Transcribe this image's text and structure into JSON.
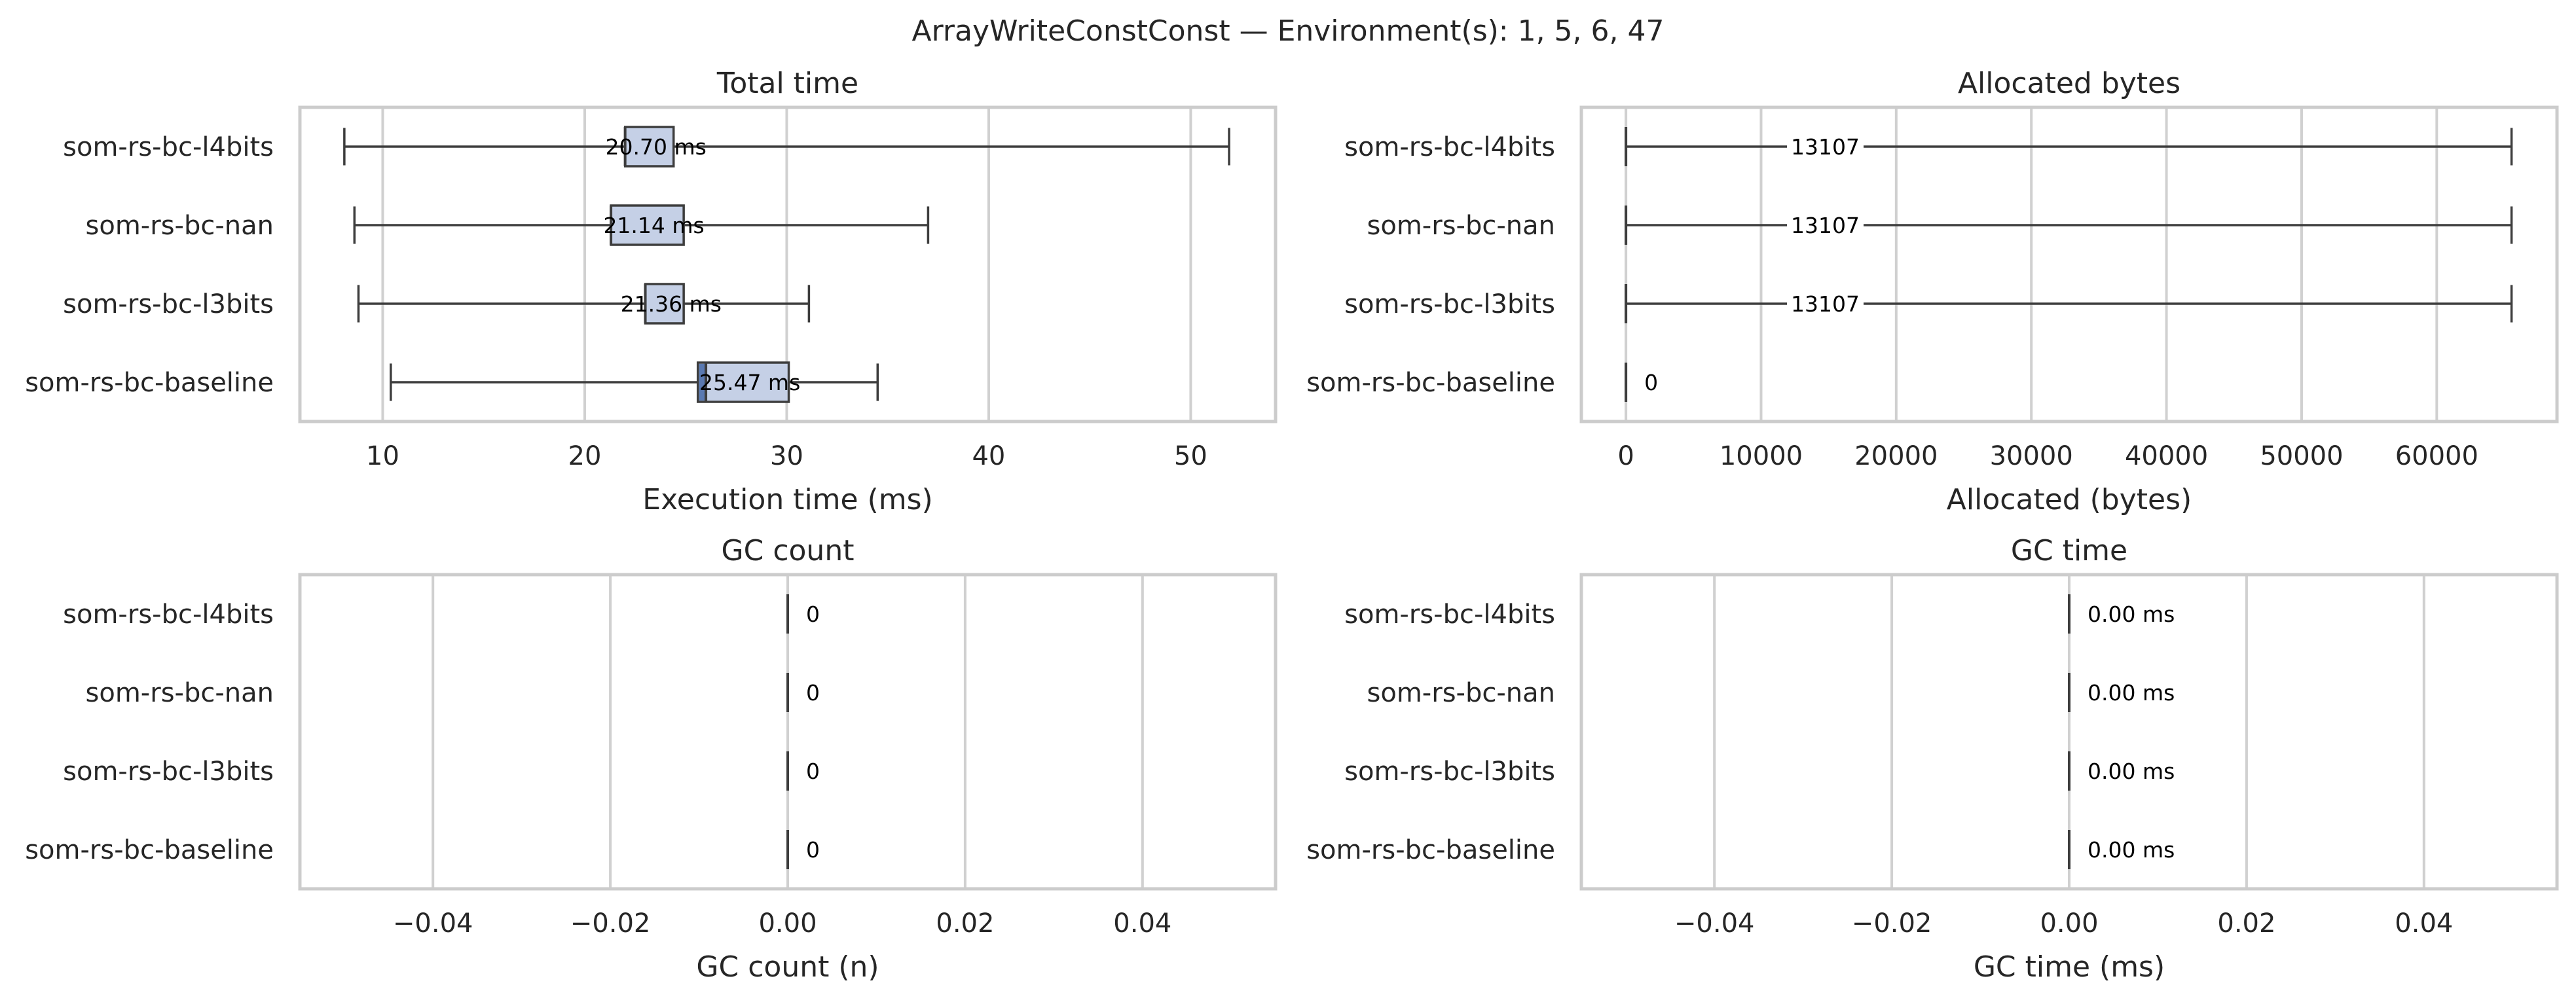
{
  "title": "ArrayWriteConstConst — Environment(s): 1, 5, 6, 47",
  "box_color": "#c5d0e6",
  "box_lower_color": "#5a79b1",
  "chart_data": [
    {
      "type": "box",
      "title": "Total time",
      "xlabel": "Execution time (ms)",
      "ylabel": "",
      "xlim": [
        5.9,
        54.2
      ],
      "xticks": [
        10,
        20,
        30,
        40,
        50
      ],
      "xtick_labels": [
        "10",
        "20",
        "30",
        "40",
        "50"
      ],
      "grid": true,
      "categories": [
        "som-rs-bc-l4bits",
        "som-rs-bc-nan",
        "som-rs-bc-l3bits",
        "som-rs-bc-baseline"
      ],
      "boxes": [
        {
          "min": 8.1,
          "q1": 22.0,
          "median": 22.0,
          "q3": 24.4,
          "max": 51.9
        },
        {
          "min": 8.6,
          "q1": 21.3,
          "median": 21.3,
          "q3": 24.9,
          "max": 37.0
        },
        {
          "min": 8.8,
          "q1": 23.0,
          "median": 23.0,
          "q3": 24.9,
          "max": 31.1
        },
        {
          "min": 10.4,
          "q1": 25.6,
          "median": 26.0,
          "q3": 30.1,
          "max": 34.5
        }
      ],
      "labels": [
        "20.70 ms",
        "21.14 ms",
        "21.36 ms",
        "25.47 ms"
      ]
    },
    {
      "type": "box",
      "title": "Allocated bytes",
      "xlabel": "Allocated (bytes)",
      "ylabel": "",
      "xlim": [
        -3300,
        68900
      ],
      "xticks": [
        0,
        10000,
        20000,
        30000,
        40000,
        50000,
        60000
      ],
      "xtick_labels": [
        "0",
        "10000",
        "20000",
        "30000",
        "40000",
        "50000",
        "60000"
      ],
      "grid": true,
      "categories": [
        "som-rs-bc-l4bits",
        "som-rs-bc-nan",
        "som-rs-bc-l3bits",
        "som-rs-bc-baseline"
      ],
      "boxes": [
        {
          "min": 0,
          "q1": 0,
          "median": 0,
          "q3": 0,
          "max": 65536
        },
        {
          "min": 0,
          "q1": 0,
          "median": 0,
          "q3": 0,
          "max": 65536
        },
        {
          "min": 0,
          "q1": 0,
          "median": 0,
          "q3": 0,
          "max": 65536
        },
        {
          "min": 0,
          "q1": 0,
          "median": 0,
          "q3": 0,
          "max": 0
        }
      ],
      "labels": [
        "13107",
        "13107",
        "13107",
        "0"
      ]
    },
    {
      "type": "box",
      "title": "GC count",
      "xlabel": "GC count (n)",
      "ylabel": "",
      "xlim": [
        -0.055,
        0.055
      ],
      "xticks": [
        -0.04,
        -0.02,
        0,
        0.02,
        0.04
      ],
      "xtick_labels": [
        "−0.04",
        "−0.02",
        "0.00",
        "0.02",
        "0.04"
      ],
      "grid": true,
      "categories": [
        "som-rs-bc-l4bits",
        "som-rs-bc-nan",
        "som-rs-bc-l3bits",
        "som-rs-bc-baseline"
      ],
      "boxes": [
        {
          "min": 0,
          "q1": 0,
          "median": 0,
          "q3": 0,
          "max": 0
        },
        {
          "min": 0,
          "q1": 0,
          "median": 0,
          "q3": 0,
          "max": 0
        },
        {
          "min": 0,
          "q1": 0,
          "median": 0,
          "q3": 0,
          "max": 0
        },
        {
          "min": 0,
          "q1": 0,
          "median": 0,
          "q3": 0,
          "max": 0
        }
      ],
      "labels": [
        "0",
        "0",
        "0",
        "0"
      ]
    },
    {
      "type": "box",
      "title": "GC time",
      "xlabel": "GC time (ms)",
      "ylabel": "",
      "xlim": [
        -0.055,
        0.055
      ],
      "xticks": [
        -0.04,
        -0.02,
        0,
        0.02,
        0.04
      ],
      "xtick_labels": [
        "−0.04",
        "−0.02",
        "0.00",
        "0.02",
        "0.04"
      ],
      "grid": true,
      "categories": [
        "som-rs-bc-l4bits",
        "som-rs-bc-nan",
        "som-rs-bc-l3bits",
        "som-rs-bc-baseline"
      ],
      "boxes": [
        {
          "min": 0,
          "q1": 0,
          "median": 0,
          "q3": 0,
          "max": 0
        },
        {
          "min": 0,
          "q1": 0,
          "median": 0,
          "q3": 0,
          "max": 0
        },
        {
          "min": 0,
          "q1": 0,
          "median": 0,
          "q3": 0,
          "max": 0
        },
        {
          "min": 0,
          "q1": 0,
          "median": 0,
          "q3": 0,
          "max": 0
        }
      ],
      "labels": [
        "0.00 ms",
        "0.00 ms",
        "0.00 ms",
        "0.00 ms"
      ]
    }
  ]
}
